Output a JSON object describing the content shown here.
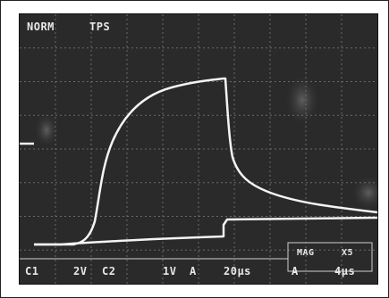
{
  "header": {
    "mode": "NORM",
    "status": "TPS"
  },
  "readout": {
    "ch1": "C1",
    "ch1_scale": "2V",
    "ch2": "C2",
    "ch2_scale": "1V",
    "ch2_label": "A",
    "time_base": "20µs",
    "trigger": "A",
    "mag_label": "MAG",
    "mag_value": "X5",
    "mag_time": "4µs"
  },
  "colors": {
    "screen_bg": "#2a2a2a",
    "grid": "#6a6a6a",
    "trace": "#f4f4f4",
    "text": "#e8e8e8"
  }
}
